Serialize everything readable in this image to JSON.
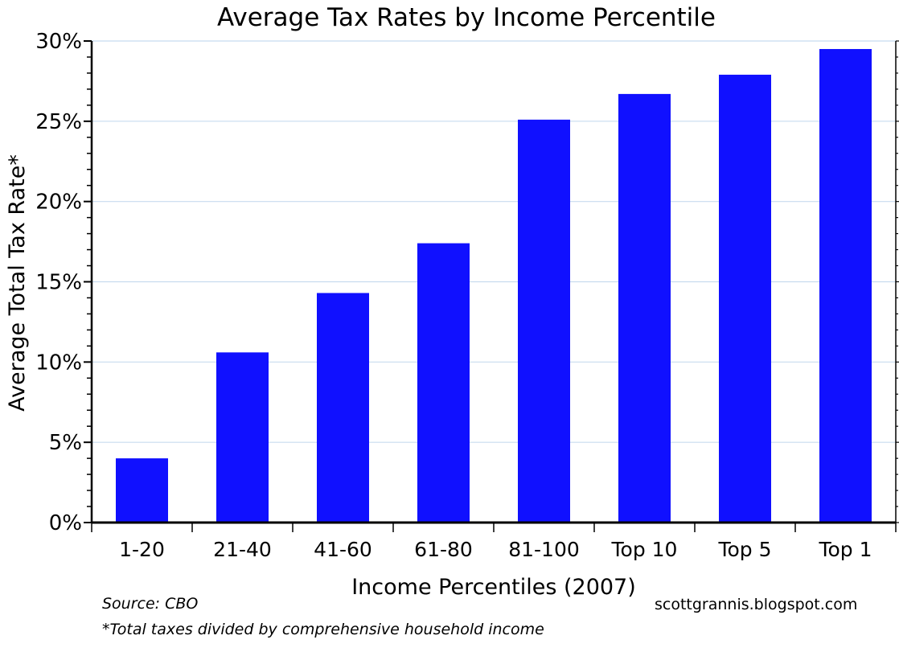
{
  "chart_data": {
    "type": "bar",
    "title": "Average Tax Rates by Income Percentile",
    "xlabel": "Income Percentiles (2007)",
    "ylabel": "Average Total Tax Rate*",
    "categories": [
      "1-20",
      "21-40",
      "41-60",
      "61-80",
      "81-100",
      "Top 10",
      "Top 5",
      "Top 1"
    ],
    "values": [
      4.0,
      10.6,
      14.3,
      17.4,
      25.1,
      26.7,
      27.9,
      29.5
    ],
    "ylim": [
      0,
      30
    ],
    "yticks": [
      0,
      5,
      10,
      15,
      20,
      25,
      30
    ],
    "ytick_labels": [
      "0%",
      "5%",
      "10%",
      "15%",
      "20%",
      "25%",
      "30%"
    ],
    "grid": true,
    "bar_color": "#1010ff",
    "grid_color": "#c8dcef"
  },
  "notes": {
    "source": "Source: CBO",
    "footnote": "*Total taxes divided by comprehensive household income",
    "credit": "scottgrannis.blogspot.com"
  }
}
